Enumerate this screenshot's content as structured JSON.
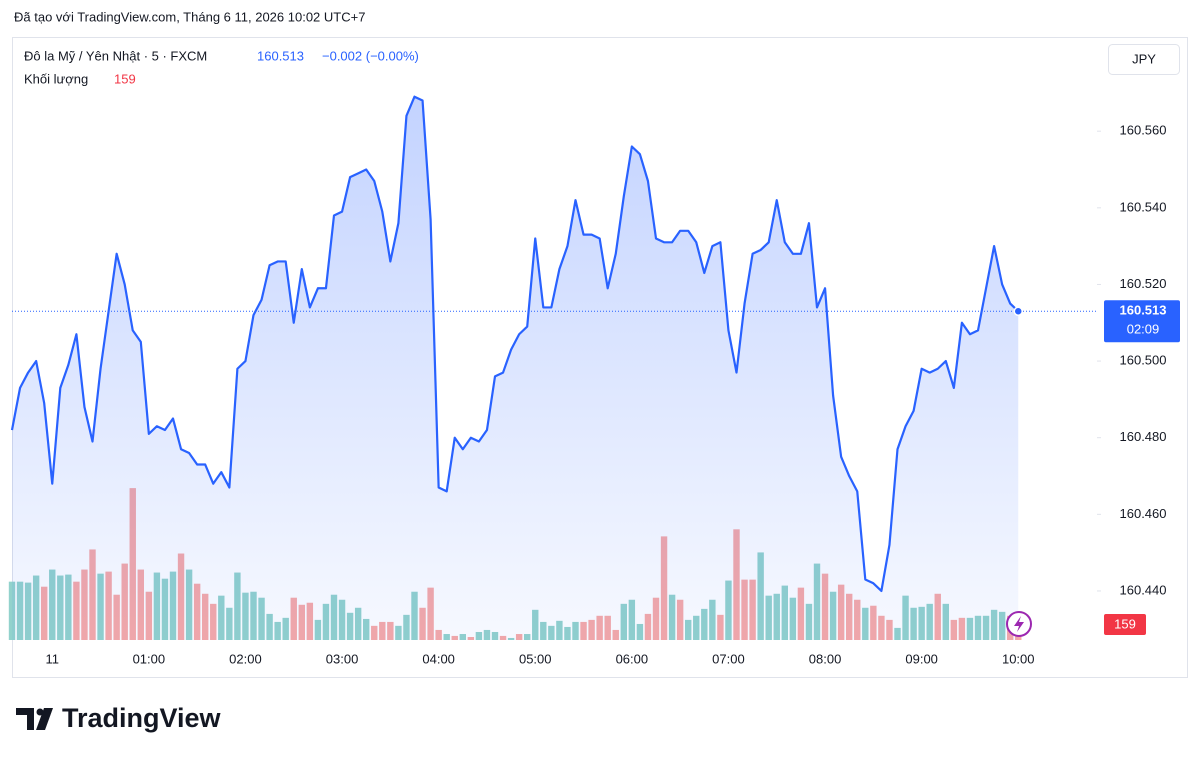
{
  "created_note": "Đã tạo với TradingView.com, Tháng 6 11, 2026 10:02 UTC+7",
  "brand": "TradingView",
  "chart_data": {
    "type": "line",
    "title": "Đô la Mỹ / Yên Nhật · 5 · FXCM",
    "change_label": "−0.002 (−0.00%)",
    "currency": "JPY",
    "countdown": "02:09",
    "categories": [
      null,
      null,
      null,
      null,
      null,
      "11",
      null,
      null,
      null,
      null,
      null,
      null,
      null,
      null,
      null,
      null,
      null,
      "01:00",
      null,
      null,
      null,
      null,
      null,
      null,
      null,
      null,
      null,
      null,
      null,
      "02:00",
      null,
      null,
      null,
      null,
      null,
      null,
      null,
      null,
      null,
      null,
      null,
      "03:00",
      null,
      null,
      null,
      null,
      null,
      null,
      null,
      null,
      null,
      null,
      null,
      "04:00",
      null,
      null,
      null,
      null,
      null,
      null,
      null,
      null,
      null,
      null,
      null,
      "05:00",
      null,
      null,
      null,
      null,
      null,
      null,
      null,
      null,
      null,
      null,
      null,
      "06:00",
      null,
      null,
      null,
      null,
      null,
      null,
      null,
      null,
      null,
      null,
      null,
      "07:00",
      null,
      null,
      null,
      null,
      null,
      null,
      null,
      null,
      null,
      null,
      null,
      "08:00",
      null,
      null,
      null,
      null,
      null,
      null,
      null,
      null,
      null,
      null,
      null,
      "09:00",
      null,
      null,
      null,
      null,
      null,
      null,
      null,
      null,
      null,
      null,
      null,
      "10:00"
    ],
    "ylim": [
      160.4272,
      160.5838
    ],
    "yticks": [
      {
        "value": 160.44,
        "label": "160.440"
      },
      {
        "value": 160.46,
        "label": "160.460"
      },
      {
        "value": 160.48,
        "label": "160.480"
      },
      {
        "value": 160.5,
        "label": "160.500"
      },
      {
        "value": 160.52,
        "label": "160.520"
      },
      {
        "value": 160.54,
        "label": "160.540"
      },
      {
        "value": 160.56,
        "label": "160.560"
      }
    ],
    "y2lim": [
      0,
      3816
    ],
    "series": [
      {
        "color": "#2962ff",
        "values": [
          160.482,
          160.493,
          160.497,
          160.5,
          160.489,
          160.468,
          160.493,
          160.499,
          160.507,
          160.488,
          160.479,
          160.498,
          160.513,
          160.528,
          160.52,
          160.508,
          160.505,
          160.481,
          160.483,
          160.482,
          160.485,
          160.477,
          160.476,
          160.473,
          160.473,
          160.468,
          160.471,
          160.467,
          160.498,
          160.5,
          160.512,
          160.516,
          160.525,
          160.526,
          160.526,
          160.51,
          160.524,
          160.514,
          160.519,
          160.519,
          160.538,
          160.539,
          160.548,
          160.549,
          160.55,
          160.547,
          160.539,
          160.526,
          160.536,
          160.564,
          160.569,
          160.568,
          160.537,
          160.467,
          160.466,
          160.48,
          160.477,
          160.48,
          160.479,
          160.482,
          160.496,
          160.497,
          160.503,
          160.507,
          160.509,
          160.532,
          160.514,
          160.514,
          160.524,
          160.53,
          160.542,
          160.533,
          160.533,
          160.532,
          160.519,
          160.528,
          160.543,
          160.556,
          160.554,
          160.547,
          160.532,
          160.531,
          160.531,
          160.534,
          160.534,
          160.531,
          160.523,
          160.53,
          160.531,
          160.508,
          160.497,
          160.515,
          160.528,
          160.529,
          160.531,
          160.542,
          160.531,
          160.528,
          160.528,
          160.536,
          160.514,
          160.519,
          160.491,
          160.475,
          160.47,
          160.466,
          160.443,
          160.442,
          160.44,
          160.452,
          160.477,
          160.483,
          160.487,
          160.498,
          160.497,
          160.498,
          160.5,
          160.493,
          160.51,
          160.507,
          160.508,
          160.519,
          160.53,
          160.52,
          160.515,
          160.513
        ]
      },
      {
        "name": "Khối lượng",
        "type": "bar",
        "axis": "y2",
        "color": "#f23645",
        "values": [
          371,
          371,
          365,
          410,
          339,
          448,
          410,
          416,
          371,
          448,
          576,
          422,
          435,
          288,
          486,
          966,
          448,
          307,
          429,
          390,
          435,
          550,
          448,
          358,
          294,
          230,
          282,
          205,
          429,
          301,
          307,
          269,
          166,
          115,
          141,
          269,
          224,
          237,
          128,
          230,
          288,
          256,
          173,
          205,
          134,
          90,
          115,
          115,
          90,
          160,
          307,
          205,
          333,
          64,
          38,
          26,
          38,
          19,
          51,
          64,
          51,
          26,
          13,
          38,
          38,
          192,
          115,
          90,
          122,
          83,
          115,
          115,
          128,
          154,
          154,
          64,
          230,
          256,
          102,
          166,
          269,
          659,
          288,
          256,
          128,
          154,
          198,
          256,
          160,
          378,
          704,
          384,
          384,
          557,
          282,
          294,
          346,
          269,
          333,
          230,
          486,
          422,
          307,
          352,
          294,
          256,
          205,
          218,
          154,
          128,
          77,
          282,
          205,
          211,
          230,
          294,
          230,
          128,
          141,
          141,
          154,
          154,
          192,
          179,
          154,
          159
        ],
        "colors": [
          "#92d2cc",
          "#92d2cc",
          "#92d2cc",
          "#92d2cc",
          "#f7a9a7",
          "#92d2cc",
          "#92d2cc",
          "#92d2cc",
          "#f7a9a7",
          "#f7a9a7",
          "#f7a9a7",
          "#92d2cc",
          "#f7a9a7",
          "#f7a9a7",
          "#f7a9a7",
          "#f7a9a7",
          "#f7a9a7",
          "#f7a9a7",
          "#92d2cc",
          "#92d2cc",
          "#92d2cc",
          "#f7a9a7",
          "#92d2cc",
          "#f7a9a7",
          "#f7a9a7",
          "#f7a9a7",
          "#92d2cc",
          "#92d2cc",
          "#92d2cc",
          "#92d2cc",
          "#92d2cc",
          "#92d2cc",
          "#92d2cc",
          "#92d2cc",
          "#92d2cc",
          "#f7a9a7",
          "#f7a9a7",
          "#f7a9a7",
          "#92d2cc",
          "#92d2cc",
          "#92d2cc",
          "#92d2cc",
          "#92d2cc",
          "#92d2cc",
          "#92d2cc",
          "#f7a9a7",
          "#f7a9a7",
          "#f7a9a7",
          "#92d2cc",
          "#92d2cc",
          "#92d2cc",
          "#f7a9a7",
          "#f7a9a7",
          "#f7a9a7",
          "#92d2cc",
          "#f7a9a7",
          "#92d2cc",
          "#f7a9a7",
          "#92d2cc",
          "#92d2cc",
          "#92d2cc",
          "#f7a9a7",
          "#92d2cc",
          "#f7a9a7",
          "#92d2cc",
          "#92d2cc",
          "#92d2cc",
          "#92d2cc",
          "#92d2cc",
          "#92d2cc",
          "#92d2cc",
          "#f7a9a7",
          "#f7a9a7",
          "#f7a9a7",
          "#f7a9a7",
          "#f7a9a7",
          "#92d2cc",
          "#92d2cc",
          "#92d2cc",
          "#f7a9a7",
          "#f7a9a7",
          "#f7a9a7",
          "#92d2cc",
          "#f7a9a7",
          "#92d2cc",
          "#92d2cc",
          "#92d2cc",
          "#92d2cc",
          "#f7a9a7",
          "#92d2cc",
          "#f7a9a7",
          "#f7a9a7",
          "#f7a9a7",
          "#92d2cc",
          "#92d2cc",
          "#92d2cc",
          "#92d2cc",
          "#92d2cc",
          "#f7a9a7",
          "#92d2cc",
          "#92d2cc",
          "#f7a9a7",
          "#92d2cc",
          "#f7a9a7",
          "#f7a9a7",
          "#f7a9a7",
          "#92d2cc",
          "#f7a9a7",
          "#f7a9a7",
          "#f7a9a7",
          "#92d2cc",
          "#92d2cc",
          "#92d2cc",
          "#92d2cc",
          "#92d2cc",
          "#f7a9a7",
          "#92d2cc",
          "#f7a9a7",
          "#f7a9a7",
          "#92d2cc",
          "#92d2cc",
          "#92d2cc",
          "#92d2cc",
          "#92d2cc",
          "#f7a9a7",
          "#f7a9a7"
        ]
      }
    ]
  }
}
